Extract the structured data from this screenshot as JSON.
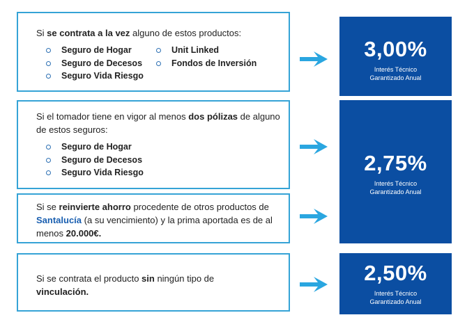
{
  "conditions": [
    {
      "parts": [
        {
          "t": "Si ",
          "b": false
        },
        {
          "t": "se contrata a la vez",
          "b": true
        },
        {
          "t": " alguno de estos productos:",
          "b": false
        }
      ],
      "col1": [
        "Seguro de Hogar",
        "Seguro de Decesos",
        "Seguro Vida Riesgo"
      ],
      "col2": [
        "Unit Linked",
        "Fondos de Inversión"
      ]
    },
    {
      "parts": [
        {
          "t": "Si el tomador tiene en vigor al menos ",
          "b": false
        },
        {
          "t": "dos pólizas",
          "b": true
        },
        {
          "t": " de alguno de estos seguros:",
          "b": false
        }
      ],
      "items": [
        "Seguro de Hogar",
        "Seguro de Decesos",
        "Seguro Vida Riesgo"
      ]
    },
    {
      "parts": [
        {
          "t": "Si se ",
          "b": false
        },
        {
          "t": "reinvierte ahorro",
          "b": true
        },
        {
          "t": " procedente de otros productos de ",
          "b": false
        },
        {
          "t": "Santalucía",
          "brand": true
        },
        {
          "t": " (a su vencimiento) y la prima aportada es de al menos ",
          "b": false
        },
        {
          "t": "20.000€.",
          "b": true
        }
      ]
    },
    {
      "parts": [
        {
          "t": "Si se contrata el producto ",
          "b": false
        },
        {
          "t": "sin",
          "b": true
        },
        {
          "t": " ningún tipo de ",
          "b": false
        },
        {
          "t": "vinculación.",
          "b": true
        }
      ]
    }
  ],
  "rates": [
    {
      "value": "3,00%",
      "label": "Interés Técnico Garantizado Anual"
    },
    {
      "value": "2,75%",
      "label": "Interés Técnico Garantizado Anual"
    },
    {
      "value": "2,50%",
      "label": "Interés Técnico Garantizado Anual"
    }
  ],
  "colors": {
    "border": "#35a3d6",
    "arrow": "#2aa6e0",
    "rate_bg": "#0b4ea2",
    "brand": "#1a5fb0"
  },
  "icons": {
    "arrow": "arrow-right-icon",
    "bullet": "circle-bullet-icon"
  }
}
